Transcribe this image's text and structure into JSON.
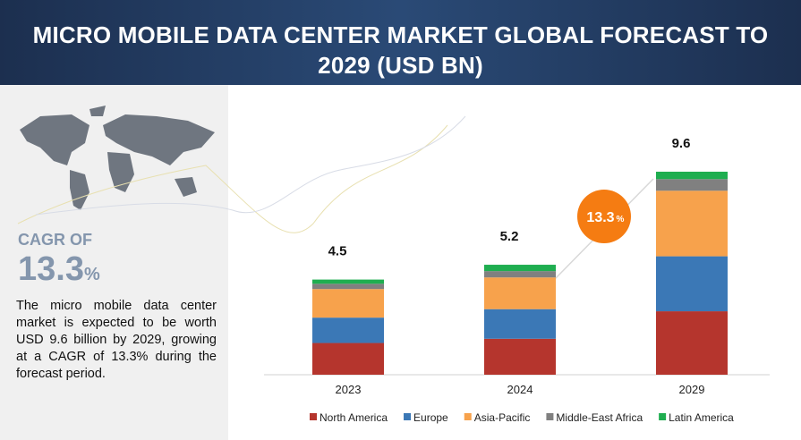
{
  "title": "MICRO MOBILE DATA CENTER MARKET GLOBAL FORECAST TO 2029 (USD BN)",
  "cagr": {
    "label": "CAGR OF",
    "value": 13.3,
    "unit": "%"
  },
  "description": "The micro mobile data center market is expected to be worth USD 9.6 billion by 2029, growing at a CAGR of 13.3% during the forecast period.",
  "chart_data": {
    "type": "stacked_bar",
    "categories": [
      "2023",
      "2024",
      "2029"
    ],
    "totals": [
      4.5,
      5.2,
      9.6
    ],
    "series": [
      {
        "name": "North America",
        "color": "#b5352d",
        "values": [
          1.5,
          1.7,
          3.0
        ]
      },
      {
        "name": "Europe",
        "color": "#3b78b6",
        "values": [
          1.2,
          1.4,
          2.6
        ]
      },
      {
        "name": "Asia-Pacific",
        "color": "#f7a24c",
        "values": [
          1.35,
          1.5,
          3.1
        ]
      },
      {
        "name": "Middle-East Africa",
        "color": "#808080",
        "values": [
          0.25,
          0.3,
          0.55
        ]
      },
      {
        "name": "Latin America",
        "color": "#1fae50",
        "values": [
          0.2,
          0.3,
          0.35
        ]
      }
    ]
  }
}
